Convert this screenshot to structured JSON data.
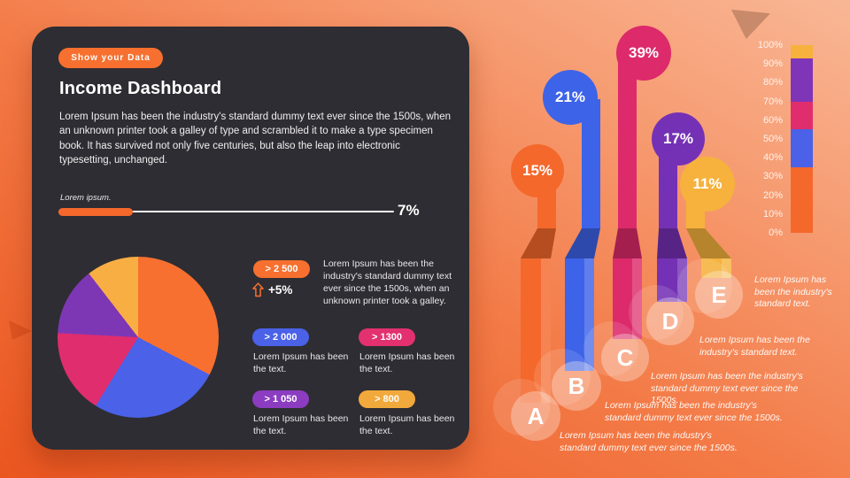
{
  "palette": {
    "accent_orange": "#f7702f",
    "deep_orange": "#f4682c",
    "blue": "#4a61e8",
    "pink": "#e2316e",
    "purple": "#8b3cc0",
    "yellow": "#f2a93c",
    "card_background": "#2e2d33",
    "background_gradient": [
      "#eb5620",
      "#f9b795"
    ]
  },
  "card": {
    "badge_label": "Show your Data",
    "badge_color": "#f7702f",
    "title": "Income Dashboard",
    "description": "Lorem Ipsum has been the industry's standard dummy text ever since the 1500s, when an unknown printer took a galley of type and scrambled it to make a type specimen book. It has survived not only five centuries, but also the leap into electronic typesetting, unchanged.",
    "progress": {
      "label": "Lorem ipsum.",
      "percent": 7,
      "value_label": "7%"
    },
    "kpi": {
      "pill_label": "> 2 500",
      "pill_color": "#f7702f",
      "delta_label": "+5%",
      "note": "Lorem Ipsum has been the industry's standard dummy text ever since the 1500s, when an unknown printer took a galley."
    },
    "legend": [
      {
        "pill_label": "> 2 000",
        "color": "#4a61e8",
        "note": "Lorem Ipsum has been the text."
      },
      {
        "pill_label": "> 1300",
        "color": "#e2316e",
        "note": "Lorem Ipsum has been the text."
      },
      {
        "pill_label": "> 1 050",
        "color": "#8b3cc0",
        "note": "Lorem Ipsum has been the text."
      },
      {
        "pill_label": "> 800",
        "color": "#f2a93c",
        "note": "Lorem Ipsum has been the text."
      }
    ]
  },
  "chart_data": [
    {
      "type": "pie",
      "labels": [
        "> 2 500",
        "> 2 000",
        "> 1300",
        "> 1 050",
        "> 800"
      ],
      "values": [
        2500,
        2000,
        1300,
        1050,
        800
      ],
      "percent_of_total": [
        32.7,
        26.1,
        17.0,
        13.7,
        10.5
      ],
      "colors": [
        "#f7702f",
        "#4a61e8",
        "#e02d6d",
        "#7e37b4",
        "#f9ae44"
      ],
      "start_angle_deg": 0,
      "direction": "clockwise",
      "legend_position": "right"
    },
    {
      "type": "bar",
      "variant": "lollipop-ribbon",
      "categories": [
        "A",
        "B",
        "C",
        "D",
        "E"
      ],
      "ylim": [
        0,
        100
      ],
      "series": [
        {
          "letter": "A",
          "value": 15,
          "value_label": "15%",
          "color": "#f4682c",
          "caption": "Lorem Ipsum has been the industry's standard dummy text ever since the 1500s."
        },
        {
          "letter": "B",
          "value": 21,
          "value_label": "21%",
          "color": "#3d63e8",
          "caption": "Lorem Ipsum has been the industry's standard dummy text ever since the 1500s."
        },
        {
          "letter": "C",
          "value": 39,
          "value_label": "39%",
          "color": "#dd2a6a",
          "caption": "Lorem Ipsum has been the industry's standard dummy text ever since the 1500s."
        },
        {
          "letter": "D",
          "value": 17,
          "value_label": "17%",
          "color": "#7531b5",
          "caption": "Lorem Ipsum has been the industry's standard text."
        },
        {
          "letter": "E",
          "value": 11,
          "value_label": "11%",
          "color": "#f6b23d",
          "caption": "Lorem Ipsum has been the industry's standard text."
        }
      ]
    },
    {
      "type": "bar",
      "variant": "stacked-scale",
      "axis_ticks": [
        "100%",
        "90%",
        "80%",
        "70%",
        "60%",
        "50%",
        "40%",
        "30%",
        "20%",
        "10%",
        "0%"
      ],
      "ylim": [
        0,
        100
      ],
      "segments_top_to_bottom": [
        {
          "color": "#f6b23d",
          "value": 7
        },
        {
          "color": "#7f35b8",
          "value": 23
        },
        {
          "color": "#e02d6d",
          "value": 15
        },
        {
          "color": "#4a61e8",
          "value": 20
        },
        {
          "color": "#f4682c",
          "value": 35
        }
      ]
    }
  ]
}
